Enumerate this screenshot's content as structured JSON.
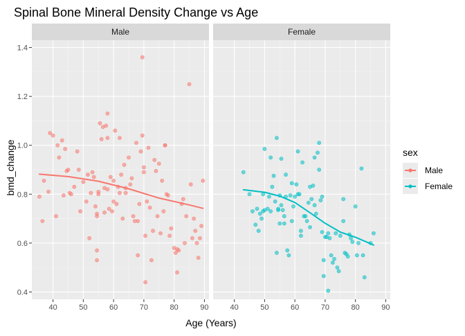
{
  "chart_data": {
    "type": "scatter",
    "title": "Spinal Bone Mineral Density Change vs Age",
    "xlabel": "Age (Years)",
    "ylabel": "bmd_change",
    "xlim": [
      33,
      91.5
    ],
    "ylim": [
      0.37,
      1.43
    ],
    "xticks": [
      40,
      50,
      60,
      70,
      80,
      90
    ],
    "yticks": [
      0.4,
      0.6,
      0.8,
      1.0,
      1.2,
      1.4
    ],
    "ytick_labels": [
      "0.4",
      "0.6",
      "0.8",
      "1.0",
      "1.2",
      "1.4"
    ],
    "grid": true,
    "legend": {
      "title": "sex",
      "position": "right"
    },
    "panels": [
      {
        "name": "Male",
        "color": "#F8766D",
        "points": [
          [
            35.5,
            0.79
          ],
          [
            36.5,
            0.69
          ],
          [
            37,
            0.855
          ],
          [
            38.5,
            0.81
          ],
          [
            39,
            1.05
          ],
          [
            40,
            1.04
          ],
          [
            41,
            0.71
          ],
          [
            41.5,
            1.0
          ],
          [
            42,
            0.95
          ],
          [
            43,
            1.02
          ],
          [
            43.5,
            0.795
          ],
          [
            44,
            0.985
          ],
          [
            44.5,
            0.895
          ],
          [
            45,
            0.9
          ],
          [
            45.5,
            0.805
          ],
          [
            46,
            0.8
          ],
          [
            47,
            0.83
          ],
          [
            48,
            0.975
          ],
          [
            48.5,
            0.9
          ],
          [
            49,
            0.73
          ],
          [
            50,
            0.85
          ],
          [
            51,
            0.77
          ],
          [
            51.5,
            0.88
          ],
          [
            52,
            0.62
          ],
          [
            52.5,
            0.805
          ],
          [
            53,
            0.89
          ],
          [
            53.5,
            0.87
          ],
          [
            54,
            0.75
          ],
          [
            54.5,
            0.72
          ],
          [
            54.5,
            0.71
          ],
          [
            54.5,
            0.57
          ],
          [
            54.5,
            0.53
          ],
          [
            55,
            0.81
          ],
          [
            55,
            0.8
          ],
          [
            55.5,
            1.09
          ],
          [
            56,
            1.025
          ],
          [
            56.5,
            1.075
          ],
          [
            57,
            0.725
          ],
          [
            57,
            0.825
          ],
          [
            57.5,
            1.08
          ],
          [
            58,
            1.13
          ],
          [
            58,
            1.03
          ],
          [
            58,
            0.82
          ],
          [
            58.5,
            0.74
          ],
          [
            59,
            0.87
          ],
          [
            59.5,
            0.73
          ],
          [
            60,
            0.77
          ],
          [
            60,
            0.855
          ],
          [
            60.5,
            1.06
          ],
          [
            61,
            0.76
          ],
          [
            61.5,
            0.83
          ],
          [
            62,
            1.03
          ],
          [
            62,
            0.805
          ],
          [
            62.5,
            0.88
          ],
          [
            63,
            0.7
          ],
          [
            63.5,
            0.92
          ],
          [
            64,
            0.825
          ],
          [
            64,
            0.805
          ],
          [
            65,
            0.95
          ],
          [
            65.5,
            0.84
          ],
          [
            66,
            0.865
          ],
          [
            66.5,
            0.71
          ],
          [
            67,
            0.69
          ],
          [
            67.5,
            1.01
          ],
          [
            68,
            0.69
          ],
          [
            68,
            0.55
          ],
          [
            68.5,
            0.76
          ],
          [
            69,
            0.975
          ],
          [
            69.5,
            1.04
          ],
          [
            69.5,
            1.36
          ],
          [
            70,
            0.91
          ],
          [
            70,
            0.89
          ],
          [
            70.5,
            0.63
          ],
          [
            70.5,
            0.44
          ],
          [
            71,
            0.77
          ],
          [
            71.5,
            0.99
          ],
          [
            72,
            0.745
          ],
          [
            72.5,
            0.53
          ],
          [
            73,
            0.65
          ],
          [
            73.5,
            0.94
          ],
          [
            74,
            0.895
          ],
          [
            74.5,
            0.71
          ],
          [
            75,
            0.925
          ],
          [
            75.5,
            0.64
          ],
          [
            76,
            0.855
          ],
          [
            76.5,
            0.73
          ],
          [
            77,
            1.0
          ],
          [
            77,
            1.0
          ],
          [
            77.5,
            0.8
          ],
          [
            78,
            0.795
          ],
          [
            78.5,
            0.63
          ],
          [
            79,
            0.66
          ],
          [
            80,
            0.58
          ],
          [
            80.5,
            0.56
          ],
          [
            81,
            0.575
          ],
          [
            81,
            0.48
          ],
          [
            81.5,
            0.57
          ],
          [
            82.5,
            0.76
          ],
          [
            83,
            0.78
          ],
          [
            83.5,
            0.6
          ],
          [
            84,
            0.71
          ],
          [
            85,
            1.25
          ],
          [
            85.5,
            0.84
          ],
          [
            86,
            0.62
          ],
          [
            86.5,
            0.7
          ],
          [
            87,
            0.65
          ],
          [
            87.5,
            0.6
          ],
          [
            88,
            0.54
          ],
          [
            88.5,
            0.62
          ],
          [
            89,
            0.67
          ],
          [
            89.5,
            0.855
          ]
        ],
        "smooth": [
          [
            35.5,
            0.882
          ],
          [
            45,
            0.872
          ],
          [
            55,
            0.853
          ],
          [
            65,
            0.822
          ],
          [
            75,
            0.784
          ],
          [
            85,
            0.756
          ],
          [
            89.5,
            0.742
          ]
        ]
      },
      {
        "name": "Female",
        "color": "#00BFC4",
        "points": [
          [
            43,
            0.89
          ],
          [
            45,
            0.8
          ],
          [
            46,
            0.73
          ],
          [
            47,
            0.675
          ],
          [
            47.5,
            0.74
          ],
          [
            48,
            0.65
          ],
          [
            48.5,
            0.72
          ],
          [
            49,
            0.7
          ],
          [
            49.5,
            0.8
          ],
          [
            49.5,
            0.73
          ],
          [
            50,
            0.735
          ],
          [
            50,
            0.985
          ],
          [
            51,
            0.74
          ],
          [
            51.5,
            0.79
          ],
          [
            52,
            0.95
          ],
          [
            52,
            0.73
          ],
          [
            52.5,
            0.83
          ],
          [
            53,
            0.875
          ],
          [
            53.5,
            0.77
          ],
          [
            54,
            1.03
          ],
          [
            54,
            0.56
          ],
          [
            54.5,
            0.735
          ],
          [
            54.5,
            0.74
          ],
          [
            55,
            0.795
          ],
          [
            55,
            0.68
          ],
          [
            55.5,
            0.945
          ],
          [
            55.5,
            0.755
          ],
          [
            56,
            0.735
          ],
          [
            56.5,
            0.71
          ],
          [
            56.5,
            0.68
          ],
          [
            57,
            0.88
          ],
          [
            57,
            0.79
          ],
          [
            57.5,
            0.57
          ],
          [
            58,
            0.55
          ],
          [
            58.5,
            0.795
          ],
          [
            59,
            0.845
          ],
          [
            59,
            0.69
          ],
          [
            59.5,
            0.75
          ],
          [
            60,
            0.79
          ],
          [
            60.5,
            0.84
          ],
          [
            61,
            0.975
          ],
          [
            61,
            0.8
          ],
          [
            61.5,
            0.8
          ],
          [
            62,
            0.63
          ],
          [
            62,
            0.65
          ],
          [
            62.5,
            0.93
          ],
          [
            63,
            0.71
          ],
          [
            63.5,
            0.71
          ],
          [
            64,
            0.69
          ],
          [
            64.5,
            0.765
          ],
          [
            65,
            0.83
          ],
          [
            65,
            0.665
          ],
          [
            65.5,
            0.78
          ],
          [
            66,
            0.835
          ],
          [
            66.5,
            0.95
          ],
          [
            66.5,
            0.755
          ],
          [
            67,
            0.72
          ],
          [
            67.5,
            0.97
          ],
          [
            68,
            1.01
          ],
          [
            68,
            0.9
          ],
          [
            68.5,
            0.775
          ],
          [
            69,
            0.79
          ],
          [
            69,
            0.645
          ],
          [
            69.5,
            0.53
          ],
          [
            69.5,
            0.465
          ],
          [
            70,
            0.625
          ],
          [
            70.5,
            0.625
          ],
          [
            71,
            0.405
          ],
          [
            71,
            0.64
          ],
          [
            71.5,
            0.62
          ],
          [
            72,
            0.55
          ],
          [
            72.5,
            0.52
          ],
          [
            73,
            0.535
          ],
          [
            73.5,
            0.64
          ],
          [
            74,
            0.5
          ],
          [
            74.5,
            0.485
          ],
          [
            75,
            0.63
          ],
          [
            76,
            0.78
          ],
          [
            76,
            0.69
          ],
          [
            76.5,
            0.56
          ],
          [
            77,
            0.555
          ],
          [
            77.5,
            0.545
          ],
          [
            78,
            0.635
          ],
          [
            78.5,
            0.62
          ],
          [
            79,
            0.605
          ],
          [
            80,
            0.75
          ],
          [
            80.5,
            0.55
          ],
          [
            81,
            0.6
          ],
          [
            82,
            0.905
          ],
          [
            82.5,
            0.55
          ],
          [
            83,
            0.46
          ],
          [
            85,
            0.6
          ],
          [
            86,
            0.64
          ]
        ],
        "smooth": [
          [
            43,
            0.818
          ],
          [
            50,
            0.808
          ],
          [
            55,
            0.792
          ],
          [
            60,
            0.766
          ],
          [
            65,
            0.724
          ],
          [
            70,
            0.681
          ],
          [
            75,
            0.645
          ],
          [
            80,
            0.624
          ],
          [
            86,
            0.592
          ]
        ]
      }
    ]
  }
}
